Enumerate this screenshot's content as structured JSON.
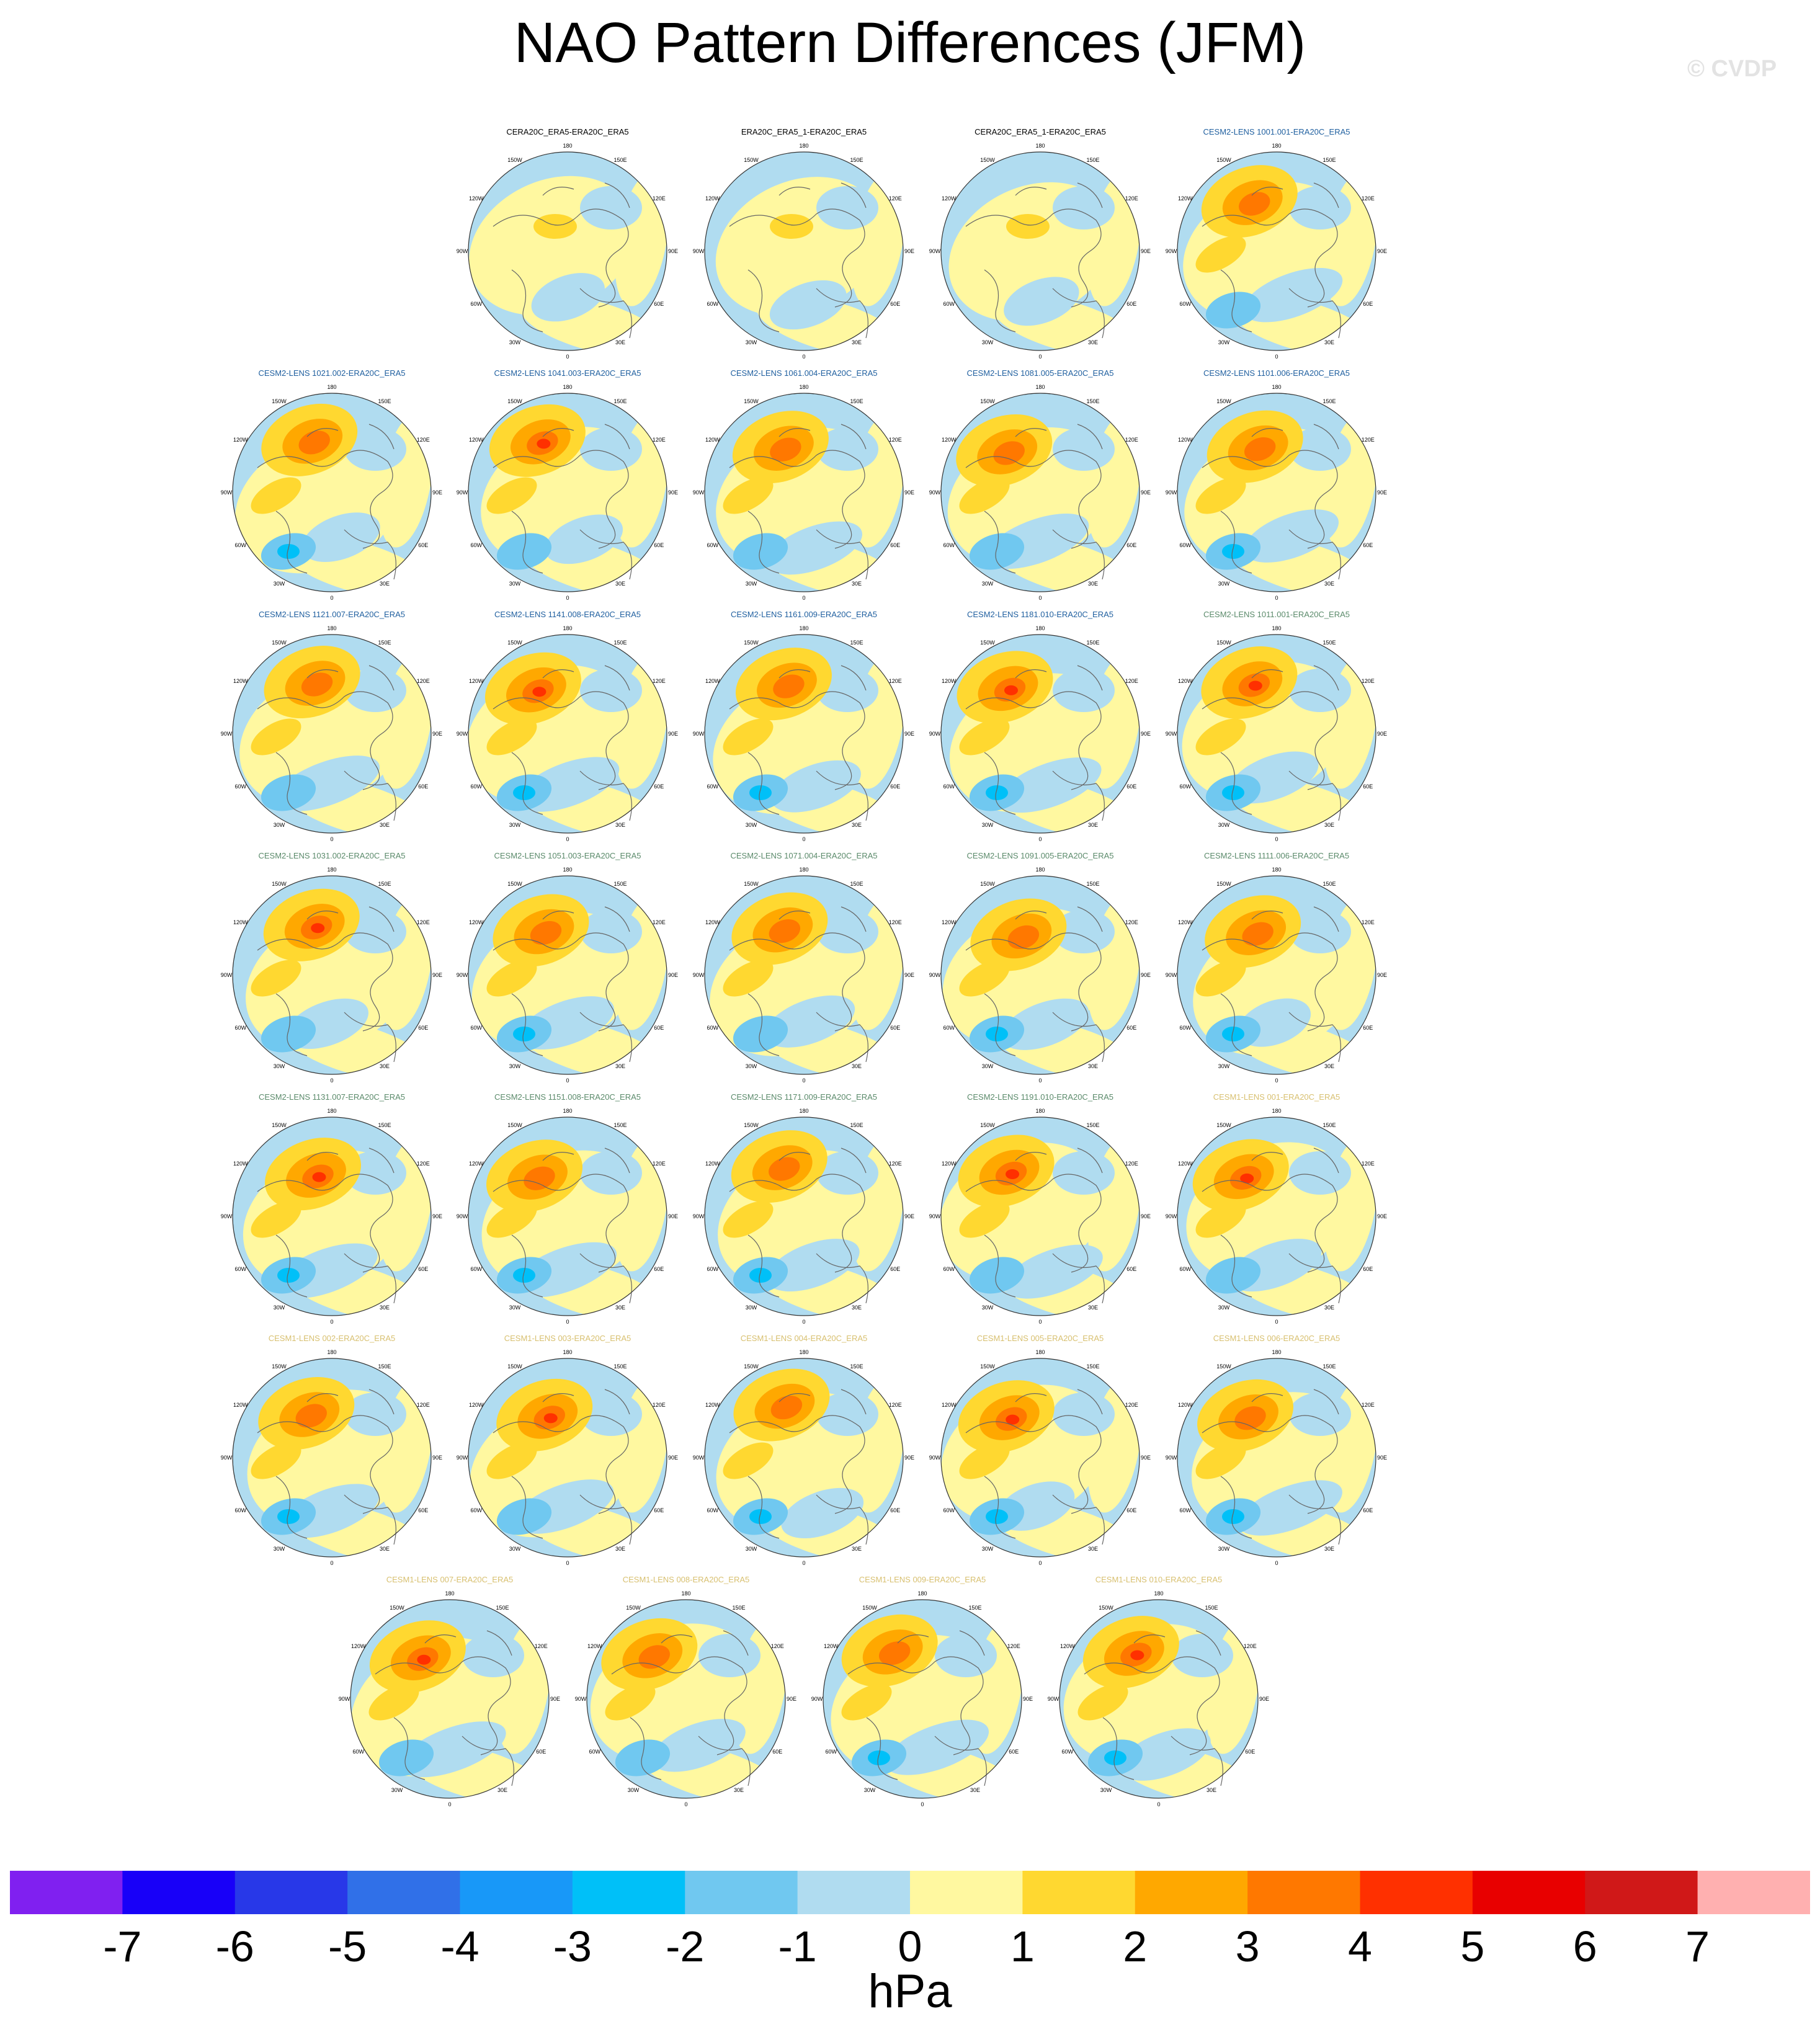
{
  "title": "NAO Pattern Differences (JFM)",
  "watermark": "© CVDP",
  "lon_labels": [
    "180",
    "150E",
    "120E",
    "90E",
    "60E",
    "30E",
    "0",
    "30W",
    "60W",
    "90W",
    "120W",
    "150W"
  ],
  "panels": [
    {
      "title": "CERA20C_ERA5-ERA20C_ERA5",
      "color": "#000000"
    },
    {
      "title": "ERA20C_ERA5_1-ERA20C_ERA5",
      "color": "#000000"
    },
    {
      "title": "CERA20C_ERA5_1-ERA20C_ERA5",
      "color": "#000000"
    },
    {
      "title": "CESM2-LENS 1001.001-ERA20C_ERA5",
      "color": "#1f5f9f"
    },
    {
      "title": "CESM2-LENS 1021.002-ERA20C_ERA5",
      "color": "#1f5f9f"
    },
    {
      "title": "CESM2-LENS 1041.003-ERA20C_ERA5",
      "color": "#1f5f9f"
    },
    {
      "title": "CESM2-LENS 1061.004-ERA20C_ERA5",
      "color": "#1f5f9f"
    },
    {
      "title": "CESM2-LENS 1081.005-ERA20C_ERA5",
      "color": "#1f5f9f"
    },
    {
      "title": "CESM2-LENS 1101.006-ERA20C_ERA5",
      "color": "#1f5f9f"
    },
    {
      "title": "CESM2-LENS 1121.007-ERA20C_ERA5",
      "color": "#1f5f9f"
    },
    {
      "title": "CESM2-LENS 1141.008-ERA20C_ERA5",
      "color": "#1f5f9f"
    },
    {
      "title": "CESM2-LENS 1161.009-ERA20C_ERA5",
      "color": "#1f5f9f"
    },
    {
      "title": "CESM2-LENS 1181.010-ERA20C_ERA5",
      "color": "#1f5f9f"
    },
    {
      "title": "CESM2-LENS 1011.001-ERA20C_ERA5",
      "color": "#5a8a6a"
    },
    {
      "title": "CESM2-LENS 1031.002-ERA20C_ERA5",
      "color": "#5a8a6a"
    },
    {
      "title": "CESM2-LENS 1051.003-ERA20C_ERA5",
      "color": "#5a8a6a"
    },
    {
      "title": "CESM2-LENS 1071.004-ERA20C_ERA5",
      "color": "#5a8a6a"
    },
    {
      "title": "CESM2-LENS 1091.005-ERA20C_ERA5",
      "color": "#5a8a6a"
    },
    {
      "title": "CESM2-LENS 1111.006-ERA20C_ERA5",
      "color": "#5a8a6a"
    },
    {
      "title": "CESM2-LENS 1131.007-ERA20C_ERA5",
      "color": "#5a8a6a"
    },
    {
      "title": "CESM2-LENS 1151.008-ERA20C_ERA5",
      "color": "#5a8a6a"
    },
    {
      "title": "CESM2-LENS 1171.009-ERA20C_ERA5",
      "color": "#5a8a6a"
    },
    {
      "title": "CESM2-LENS 1191.010-ERA20C_ERA5",
      "color": "#5a8a6a"
    },
    {
      "title": "CESM1-LENS 001-ERA20C_ERA5",
      "color": "#d8c070"
    },
    {
      "title": "CESM1-LENS 002-ERA20C_ERA5",
      "color": "#d8c070"
    },
    {
      "title": "CESM1-LENS 003-ERA20C_ERA5",
      "color": "#d8c070"
    },
    {
      "title": "CESM1-LENS 004-ERA20C_ERA5",
      "color": "#d8c070"
    },
    {
      "title": "CESM1-LENS 005-ERA20C_ERA5",
      "color": "#d8c070"
    },
    {
      "title": "CESM1-LENS 006-ERA20C_ERA5",
      "color": "#d8c070"
    },
    {
      "title": "CESM1-LENS 007-ERA20C_ERA5",
      "color": "#d8c070"
    },
    {
      "title": "CESM1-LENS 008-ERA20C_ERA5",
      "color": "#d8c070"
    },
    {
      "title": "CESM1-LENS 009-ERA20C_ERA5",
      "color": "#d8c070"
    },
    {
      "title": "CESM1-LENS 010-ERA20C_ERA5",
      "color": "#d8c070"
    }
  ],
  "colorbar": {
    "colors": [
      "#8020f0",
      "#1800f8",
      "#2838e8",
      "#3070e8",
      "#1898f8",
      "#00c0f8",
      "#70c8f0",
      "#b0dcf0",
      "#fff8a0",
      "#ffd830",
      "#ffa800",
      "#ff7800",
      "#ff3000",
      "#e80000",
      "#d01818",
      "#ffb0b0"
    ],
    "labels": [
      "-7",
      "-6",
      "-5",
      "-4",
      "-3",
      "-2",
      "-1",
      "0",
      "1",
      "2",
      "3",
      "4",
      "5",
      "6",
      "7"
    ],
    "units": "hPa"
  }
}
